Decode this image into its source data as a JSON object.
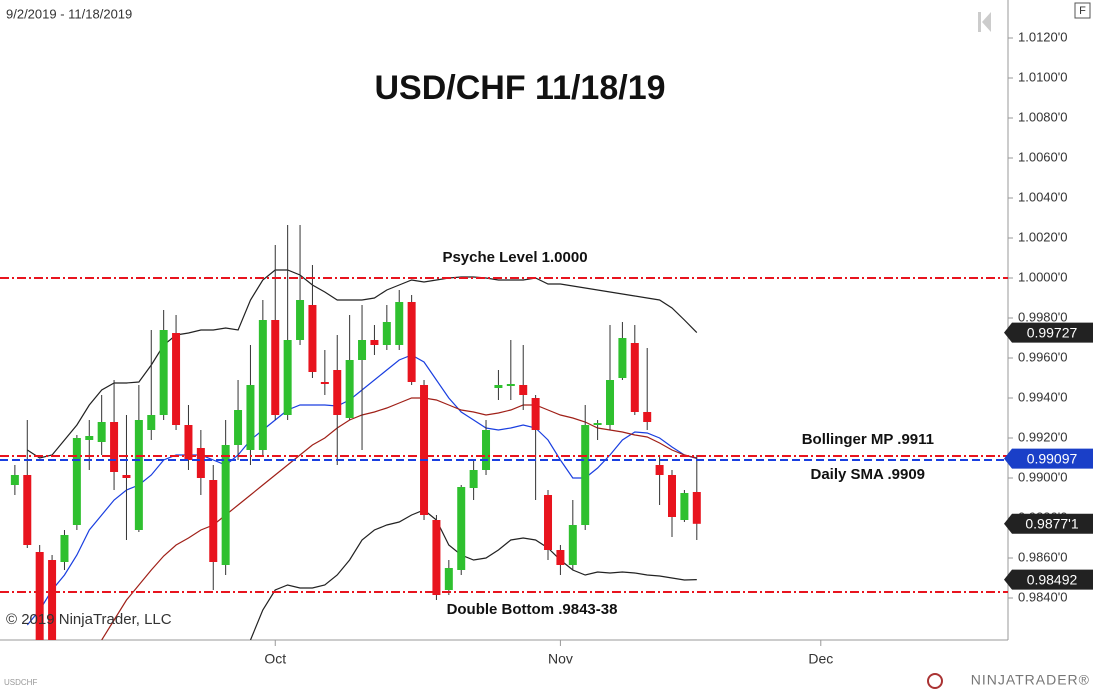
{
  "chart_data": {
    "type": "candlestick",
    "title": "USD/CHF 11/18/19",
    "date_range": "9/2/2019 - 11/18/2019",
    "symbol": "USDCHF",
    "copyright": "© 2019 NinjaTrader, LLC",
    "logo": "NINJATRADER®",
    "corner_button": "F",
    "x": [
      0,
      1,
      2,
      3,
      4,
      5,
      6,
      7,
      8,
      9,
      10,
      11,
      12,
      13,
      14,
      15,
      16,
      17,
      18,
      19,
      20,
      21,
      22,
      23,
      24,
      25,
      26,
      27,
      28,
      29,
      30,
      31,
      32,
      33,
      34,
      35,
      36,
      37,
      38,
      39,
      40,
      41,
      42,
      43,
      44,
      45,
      46,
      47,
      48,
      49,
      50,
      51,
      52,
      53,
      54,
      55
    ],
    "xlim": [
      -1.2,
      80.1
    ],
    "xticks": [
      {
        "value": 21,
        "label": "Oct"
      },
      {
        "value": 44,
        "label": "Nov"
      },
      {
        "value": 65,
        "label": "Dec"
      }
    ],
    "ylim": [
      0.9819,
      1.0139
    ],
    "yticks": [
      {
        "value": 1.012,
        "label": "1.0120'0"
      },
      {
        "value": 1.01,
        "label": "1.0100'0"
      },
      {
        "value": 1.008,
        "label": "1.0080'0"
      },
      {
        "value": 1.006,
        "label": "1.0060'0"
      },
      {
        "value": 1.004,
        "label": "1.0040'0"
      },
      {
        "value": 1.002,
        "label": "1.0020'0"
      },
      {
        "value": 1.0,
        "label": "1.0000'0"
      },
      {
        "value": 0.998,
        "label": "0.9980'0"
      },
      {
        "value": 0.996,
        "label": "0.9960'0"
      },
      {
        "value": 0.994,
        "label": "0.9940'0"
      },
      {
        "value": 0.992,
        "label": "0.9920'0"
      },
      {
        "value": 0.99,
        "label": "0.9900'0"
      },
      {
        "value": 0.988,
        "label": "0.9880'0"
      },
      {
        "value": 0.986,
        "label": "0.9860'0"
      },
      {
        "value": 0.984,
        "label": "0.9840'0"
      }
    ],
    "up_color": "#2fc02f",
    "down_color": "#e8141e",
    "open": [
      0.98965,
      0.99015,
      0.9863,
      0.9859,
      0.9858,
      0.98765,
      0.9919,
      0.9918,
      0.9928,
      0.99015,
      0.9874,
      0.9924,
      0.99315,
      0.99725,
      0.99265,
      0.9915,
      0.9899,
      0.98565,
      0.99165,
      0.9914,
      0.9914,
      0.9979,
      0.99315,
      0.9969,
      0.99865,
      0.9948,
      0.9954,
      0.993,
      0.9959,
      0.9969,
      0.99665,
      0.99665,
      0.9988,
      0.99465,
      0.9879,
      0.9844,
      0.9854,
      0.9895,
      0.9904,
      0.9945,
      0.9946,
      0.99465,
      0.994,
      0.98915,
      0.9864,
      0.98565,
      0.98765,
      0.99265,
      0.99265,
      0.995,
      0.99675,
      0.9933,
      0.99065,
      0.99015,
      0.9879,
      0.9893
    ],
    "high": [
      0.99065,
      0.9929,
      0.98665,
      0.98615,
      0.9874,
      0.99215,
      0.9929,
      0.99415,
      0.9949,
      0.99315,
      0.99465,
      0.9974,
      0.9984,
      0.99815,
      0.99365,
      0.9924,
      0.99065,
      0.9929,
      0.9949,
      0.99665,
      0.9989,
      1.00165,
      1.00265,
      1.00265,
      1.00065,
      0.9964,
      0.99715,
      0.99815,
      0.99865,
      0.99765,
      0.99865,
      0.9994,
      0.99915,
      0.9949,
      0.98815,
      0.9859,
      0.98965,
      0.9909,
      0.9929,
      0.9954,
      0.9969,
      0.99665,
      0.99415,
      0.9894,
      0.98665,
      0.9889,
      0.99365,
      0.9929,
      0.99765,
      0.9978,
      0.99765,
      0.9965,
      0.99115,
      0.9904,
      0.9894,
      0.99115
    ],
    "low": [
      0.98915,
      0.9865,
      0.9809,
      0.9814,
      0.9854,
      0.9874,
      0.9904,
      0.99115,
      0.9894,
      0.9869,
      0.9873,
      0.9919,
      0.9929,
      0.9924,
      0.9904,
      0.98915,
      0.9844,
      0.98515,
      0.9909,
      0.99065,
      0.99115,
      0.9929,
      0.9929,
      0.99665,
      0.995,
      0.99415,
      0.99065,
      0.9929,
      0.9914,
      0.99615,
      0.9964,
      0.9964,
      0.99465,
      0.9879,
      0.9839,
      0.98415,
      0.98515,
      0.9889,
      0.99015,
      0.9939,
      0.9939,
      0.9934,
      0.9889,
      0.9859,
      0.98515,
      0.9854,
      0.9874,
      0.9919,
      0.9924,
      0.9949,
      0.99315,
      0.9924,
      0.98865,
      0.98705,
      0.9878,
      0.9869
    ],
    "close": [
      0.99015,
      0.98665,
      0.9819,
      0.9819,
      0.98715,
      0.992,
      0.9921,
      0.9928,
      0.9903,
      0.99,
      0.9929,
      0.99315,
      0.9974,
      0.99265,
      0.9909,
      0.99,
      0.9858,
      0.99165,
      0.9934,
      0.99465,
      0.9979,
      0.99315,
      0.9969,
      0.9989,
      0.9953,
      0.9947,
      0.99315,
      0.9959,
      0.9969,
      0.99665,
      0.9978,
      0.9988,
      0.9948,
      0.98815,
      0.98415,
      0.9855,
      0.98955,
      0.9904,
      0.9924,
      0.99465,
      0.9947,
      0.99415,
      0.9924,
      0.9864,
      0.98565,
      0.98765,
      0.99265,
      0.99275,
      0.9949,
      0.997,
      0.9933,
      0.9928,
      0.99015,
      0.98805,
      0.98925,
      0.98771
    ],
    "overlays": [
      {
        "color": "#222222",
        "values": [
          null,
          0.9914,
          0.991,
          0.99115,
          0.9919,
          0.99265,
          0.99365,
          0.9944,
          0.99475,
          0.99475,
          0.9948,
          0.99565,
          0.99665,
          0.99715,
          0.99725,
          0.9974,
          0.9974,
          0.9975,
          0.9974,
          0.9989,
          0.9999,
          1.0004,
          1.0004,
          1.00015,
          0.99965,
          0.9993,
          0.9989,
          0.9989,
          0.9989,
          0.999,
          0.9994,
          0.99965,
          0.9999,
          0.9998,
          0.9999,
          1.0,
          1.00005,
          1.00005,
          1.0,
          0.9999,
          0.9999,
          0.9999,
          1.0,
          0.9997,
          0.9997,
          0.9996,
          0.9995,
          0.9994,
          0.9993,
          0.9992,
          0.9991,
          0.999,
          0.9989,
          0.9985,
          0.9979,
          0.99727
        ]
      },
      {
        "color": "#222222",
        "values": [
          null,
          null,
          null,
          null,
          null,
          null,
          null,
          null,
          null,
          null,
          null,
          null,
          null,
          null,
          null,
          null,
          null,
          null,
          null,
          0.9819,
          0.9834,
          0.9844,
          0.98465,
          0.9845,
          0.9845,
          0.98465,
          0.98515,
          0.9859,
          0.9869,
          0.9874,
          0.98765,
          0.9878,
          0.98815,
          0.9884,
          0.9879,
          0.98665,
          0.98615,
          0.9859,
          0.986,
          0.9864,
          0.9869,
          0.987,
          0.9869,
          0.9865,
          0.9859,
          0.9854,
          0.98515,
          0.9853,
          0.98525,
          0.9853,
          0.98525,
          0.98515,
          0.9851,
          0.985,
          0.9849,
          0.98492
        ]
      },
      {
        "color": "#1a3fe0",
        "values": [
          null,
          0.98265,
          0.9834,
          0.9844,
          0.98515,
          0.98615,
          0.9874,
          0.98815,
          0.9889,
          0.9894,
          0.98965,
          0.99015,
          0.9909,
          0.99115,
          0.99115,
          0.99115,
          0.9909,
          0.99065,
          0.99115,
          0.9919,
          0.9924,
          0.9929,
          0.9934,
          0.99365,
          0.99365,
          0.99365,
          0.9936,
          0.9939,
          0.9944,
          0.9949,
          0.9954,
          0.9959,
          0.99615,
          0.9958,
          0.9949,
          0.994,
          0.9933,
          0.9929,
          0.9925,
          0.9924,
          0.9925,
          0.99265,
          0.9925,
          0.9919,
          0.9909,
          0.99,
          0.99,
          0.9905,
          0.99115,
          0.9919,
          0.9923,
          0.99225,
          0.992,
          0.99155,
          0.99115,
          0.99097
        ]
      },
      {
        "color": "#a02018",
        "values": [
          null,
          null,
          null,
          null,
          null,
          null,
          null,
          0.9819,
          0.9829,
          0.9839,
          0.98465,
          0.9854,
          0.9861,
          0.98665,
          0.987,
          0.9874,
          0.98765,
          0.98815,
          0.98865,
          0.98915,
          0.98965,
          0.99015,
          0.99065,
          0.99115,
          0.99165,
          0.992,
          0.9925,
          0.9929,
          0.99315,
          0.9933,
          0.9935,
          0.99375,
          0.994,
          0.994,
          0.9939,
          0.99365,
          0.9934,
          0.9933,
          0.99315,
          0.99325,
          0.9934,
          0.99365,
          0.99365,
          0.9934,
          0.99315,
          0.993,
          0.9928,
          0.9925,
          0.9924,
          0.9923,
          0.99215,
          0.99205,
          0.99175,
          0.9914,
          0.99115,
          0.991
        ]
      }
    ],
    "levels": [
      {
        "value": 1.0,
        "color": "#e8141e",
        "style": "dashdot",
        "label": "Psyche Level 1.0000"
      },
      {
        "value": 0.9911,
        "color": "#e8141e",
        "style": "dashdot",
        "label": "Bollinger MP .9911"
      },
      {
        "value": 0.9909,
        "color": "#1a3fe0",
        "style": "dash",
        "label": "Daily SMA .9909"
      },
      {
        "value": 0.9843,
        "color": "#e8141e",
        "style": "dashdot",
        "label": "Double Bottom .9843-38"
      }
    ],
    "price_markers": [
      {
        "value": 0.99727,
        "label": "0.99727",
        "color": "#222222"
      },
      {
        "value": 0.99097,
        "label": "0.99097",
        "color": "#1a3fc8"
      },
      {
        "value": 0.98771,
        "label": "0.9877'1",
        "color": "#222222"
      },
      {
        "value": 0.98492,
        "label": "0.98492",
        "color": "#222222"
      }
    ]
  }
}
